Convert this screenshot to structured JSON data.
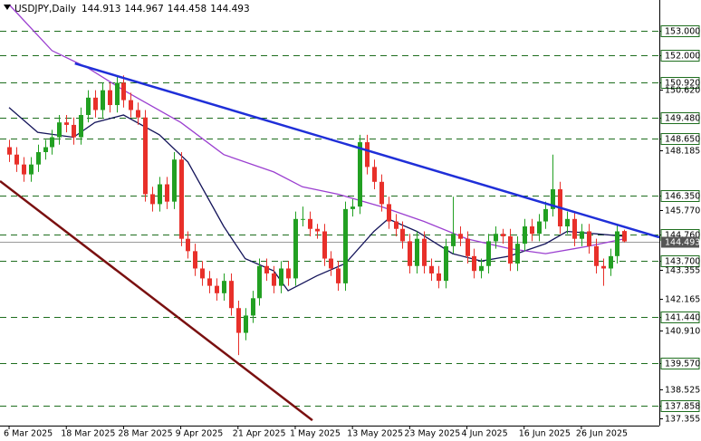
{
  "chart_data": {
    "type": "candlestick",
    "title": "USDJPY,Daily",
    "up_color": "#22a022",
    "down_color": "#e8302a",
    "open": [
      148.3,
      148.0,
      147.6,
      147.2,
      147.6,
      148.1,
      148.3,
      148.7,
      149.3,
      149.2,
      148.7,
      149.6,
      150.3,
      149.8,
      150.6,
      150.0,
      150.9,
      150.2,
      149.8,
      149.5,
      146.4,
      146.0,
      146.8,
      146.1,
      147.8,
      144.6,
      144.1,
      143.4,
      143.0,
      142.7,
      142.4,
      142.9,
      141.8,
      140.8,
      141.5,
      142.2,
      143.5,
      143.2,
      142.7,
      143.4,
      143.0,
      145.4,
      145.4,
      145.0,
      144.9,
      143.8,
      143.4,
      142.8,
      145.8,
      145.9,
      148.5,
      147.5,
      146.9,
      146.0,
      145.3,
      145.0,
      144.5,
      143.5,
      144.6,
      143.5,
      143.2,
      142.9,
      144.3,
      144.8,
      144.6,
      143.9,
      143.3,
      143.5,
      144.5,
      144.8,
      144.7,
      143.6,
      144.4,
      145.1,
      144.8,
      145.3,
      145.8,
      146.6,
      145.1,
      145.4,
      144.6,
      144.9,
      144.3,
      143.5,
      143.4,
      143.9,
      144.913
    ],
    "high": [
      148.6,
      148.3,
      147.9,
      147.9,
      148.4,
      148.6,
      149.0,
      149.6,
      149.6,
      149.5,
      149.9,
      150.6,
      150.6,
      150.9,
      150.9,
      151.2,
      151.2,
      150.5,
      150.1,
      149.8,
      146.7,
      147.1,
      147.1,
      148.1,
      148.1,
      144.9,
      144.4,
      143.7,
      143.3,
      143.0,
      143.2,
      143.2,
      142.1,
      141.8,
      142.5,
      143.8,
      143.8,
      143.5,
      143.7,
      143.7,
      145.7,
      145.9,
      145.7,
      145.2,
      145.2,
      144.1,
      143.7,
      146.1,
      146.2,
      148.8,
      148.8,
      147.8,
      147.2,
      146.3,
      145.6,
      145.3,
      144.8,
      144.9,
      144.9,
      143.8,
      143.5,
      144.6,
      146.3,
      145.1,
      144.9,
      144.2,
      143.8,
      144.8,
      145.1,
      145.0,
      145.0,
      144.7,
      145.4,
      145.4,
      145.6,
      146.1,
      148.0,
      146.9,
      145.7,
      145.7,
      145.2,
      145.2,
      144.6,
      143.8,
      144.2,
      145.2,
      144.967
    ],
    "low": [
      147.7,
      147.3,
      146.9,
      146.9,
      147.3,
      147.8,
      148.0,
      148.4,
      148.9,
      148.4,
      148.4,
      149.3,
      149.5,
      149.5,
      149.7,
      149.7,
      149.9,
      149.5,
      149.2,
      146.1,
      145.7,
      145.7,
      145.8,
      145.8,
      144.3,
      143.8,
      143.1,
      142.7,
      142.4,
      142.1,
      142.1,
      141.5,
      139.9,
      140.5,
      141.2,
      141.9,
      142.9,
      142.4,
      142.4,
      142.7,
      142.7,
      145.1,
      144.7,
      144.6,
      143.5,
      143.1,
      142.5,
      142.5,
      145.5,
      145.6,
      147.2,
      146.6,
      145.7,
      145.0,
      144.7,
      144.2,
      143.2,
      143.2,
      143.2,
      142.9,
      142.6,
      142.6,
      144.0,
      144.3,
      143.6,
      143.0,
      143.0,
      143.2,
      144.2,
      144.4,
      143.3,
      143.3,
      144.1,
      144.5,
      144.5,
      145.0,
      145.5,
      144.8,
      144.8,
      144.3,
      144.3,
      144.0,
      143.2,
      142.7,
      143.1,
      143.6,
      144.458
    ],
    "close": [
      148.0,
      147.6,
      147.2,
      147.6,
      148.1,
      148.3,
      148.7,
      149.3,
      149.2,
      148.7,
      149.6,
      150.3,
      149.8,
      150.6,
      150.0,
      150.9,
      150.2,
      149.8,
      149.5,
      146.4,
      146.0,
      146.8,
      146.1,
      147.8,
      144.6,
      144.1,
      143.4,
      143.0,
      142.7,
      142.4,
      142.9,
      141.8,
      140.8,
      141.5,
      142.2,
      143.5,
      143.2,
      142.7,
      143.4,
      143.0,
      145.4,
      145.4,
      145.0,
      144.9,
      143.8,
      143.4,
      142.8,
      145.8,
      145.9,
      148.5,
      147.5,
      146.9,
      146.0,
      145.3,
      145.0,
      144.5,
      143.5,
      144.6,
      143.5,
      143.2,
      142.9,
      144.3,
      144.8,
      144.6,
      143.9,
      143.3,
      143.5,
      144.5,
      144.8,
      144.7,
      143.6,
      144.4,
      145.1,
      144.8,
      145.3,
      145.8,
      146.6,
      145.1,
      145.4,
      144.6,
      144.9,
      144.3,
      143.5,
      143.4,
      143.9,
      144.9,
      144.493
    ],
    "lines": [
      {
        "color": "#14145a",
        "x": [
          0,
          4,
          9,
          12,
          16,
          21,
          25,
          30,
          33,
          37,
          39,
          43,
          47,
          51,
          53,
          57,
          62,
          66,
          70,
          75,
          78,
          82,
          86
        ],
        "values": [
          149.9,
          148.9,
          148.7,
          149.3,
          149.6,
          148.8,
          147.7,
          145.1,
          143.8,
          143.3,
          142.5,
          143.1,
          143.6,
          144.9,
          145.4,
          144.9,
          144.0,
          143.7,
          143.9,
          144.4,
          144.9,
          144.8,
          144.7
        ]
      },
      {
        "color": "#9b3fd0",
        "x": [
          0,
          6,
          11,
          16,
          24,
          30,
          37,
          41,
          46,
          52,
          58,
          64,
          70,
          75,
          81,
          86
        ],
        "values": [
          154.06,
          152.2,
          151.5,
          150.6,
          149.3,
          148.0,
          147.3,
          146.7,
          146.4,
          145.9,
          145.3,
          144.6,
          144.2,
          144.0,
          144.3,
          144.6
        ]
      }
    ],
    "trendlines": [
      {
        "color": "#1f2fd8",
        "x": [
          9.2,
          90.9
        ],
        "values": [
          151.68,
          144.66
        ]
      },
      {
        "color": "#7a1010",
        "x": [
          -1.27,
          42.4
        ],
        "values": [
          146.93,
          137.27
        ]
      }
    ],
    "level_color": "#1e6e1e",
    "levels": [
      {
        "value": 153,
        "label": "153.000"
      },
      {
        "value": 152,
        "label": "152.000"
      },
      {
        "value": 150.92,
        "label": "150.920"
      },
      {
        "value": 149.48,
        "label": "149.480"
      },
      {
        "value": 148.65,
        "label": "148.650"
      },
      {
        "value": 146.35,
        "label": "146.350"
      },
      {
        "value": 144.76,
        "label": "144.760"
      },
      {
        "value": 143.7,
        "label": "143.700"
      },
      {
        "value": 141.44,
        "label": "141.440"
      },
      {
        "value": 139.57,
        "label": "139.570"
      },
      137.858
    ],
    "ylim": [
      137.054,
      154.244
    ],
    "yticks": [
      {
        "value": 150.62,
        "label": "150.620"
      },
      148.185,
      {
        "value": 145.77,
        "label": "145.770"
      },
      143.355,
      142.165,
      {
        "value": 140.91,
        "label": "140.910"
      },
      138.525,
      137.355
    ],
    "xlim": [
      -1.27,
      90.9
    ],
    "xticks": [
      {
        "value": 0,
        "label": "6 Mar 2025"
      },
      {
        "value": 8,
        "label": "18 Mar 2025"
      },
      {
        "value": 16,
        "label": "28 Mar 2025"
      },
      {
        "value": 24,
        "label": "9 Apr 2025"
      },
      {
        "value": 32,
        "label": "21 Apr 2025"
      },
      {
        "value": 40,
        "label": "1 May 2025"
      },
      {
        "value": 48,
        "label": "13 May 2025"
      },
      {
        "value": 56,
        "label": "23 May 2025"
      },
      {
        "value": 64,
        "label": "4 Jun 2025"
      },
      {
        "value": 72,
        "label": "16 Jun 2025"
      },
      {
        "value": 80,
        "label": "26 Jun 2025"
      }
    ]
  }
}
